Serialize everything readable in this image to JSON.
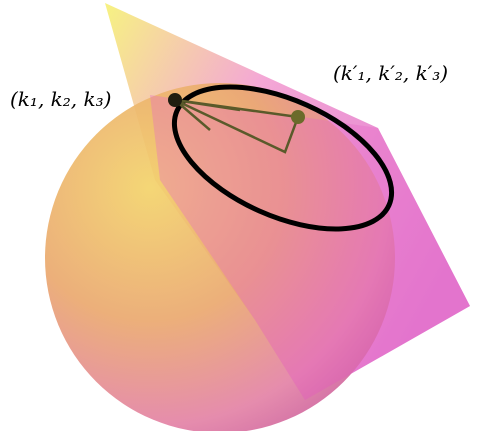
{
  "labels": {
    "point_a": "(k₁, k₂, k₃)",
    "point_b": "(k′₁, k′₂, k′₃)"
  }
}
